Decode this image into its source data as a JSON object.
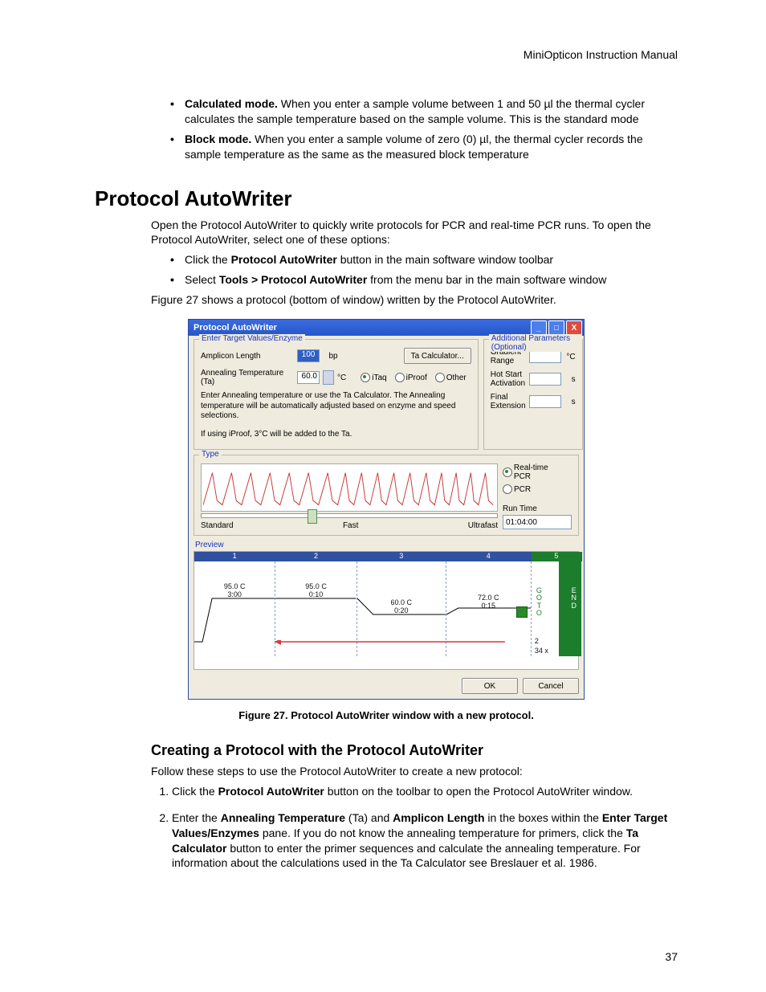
{
  "header": "MiniOpticon Instruction Manual",
  "page_number": "37",
  "bullets_top": [
    {
      "b": "Calculated mode.",
      "t": " When you enter a sample volume between 1 and 50 µl the thermal cycler calculates the sample temperature based on the sample volume. This is the standard mode"
    },
    {
      "b": "Block mode.",
      "t": " When you enter a sample volume of zero (0) µl, the thermal cycler records the sample temperature as the same as the measured block temperature"
    }
  ],
  "h1": "Protocol AutoWriter",
  "p1": "Open the Protocol AutoWriter to quickly write protocols for PCR and real-time PCR runs. To open the Protocol AutoWriter, select one of these options:",
  "bullets_mid": [
    {
      "pre": "Click the ",
      "b": "Protocol AutoWriter",
      "post": " button in the main software window toolbar"
    },
    {
      "pre": "Select ",
      "b": "Tools > Protocol AutoWriter",
      "post": " from the menu bar in the main software window"
    }
  ],
  "p2": "Figure 27 shows a protocol (bottom of window) written by the Protocol AutoWriter.",
  "fig_cap": "Figure 27. Protocol AutoWriter window with a new protocol.",
  "h2": "Creating a Protocol with the Protocol AutoWriter",
  "p3": "Follow these steps to use the Protocol AutoWriter to create a new protocol:",
  "steps": {
    "s1": {
      "pre": "Click the ",
      "b": "Protocol AutoWriter",
      "post": " button on the toolbar to open the Protocol AutoWriter window."
    },
    "s2": {
      "a": "Enter the ",
      "b1": "Annealing Temperature",
      "c": " (Ta) and ",
      "b2": "Amplicon Length",
      "d": " in the boxes within the ",
      "b3": "Enter Target Values/Enzymes",
      "e": " pane. If you do not know the annealing temperature for primers, click the ",
      "b4": "Ta Calculator",
      "f": " button to enter the primer sequences and calculate the annealing temperature. For information about the calculations used in the Ta Calculator see Breslauer et al. 1986."
    }
  },
  "win": {
    "title": "Protocol AutoWriter",
    "legend_left": "Enter Target Values/Enzyme",
    "legend_right": "Additional Parameters (Optional)",
    "amp_label": "Amplicon Length",
    "amp_value": "100",
    "bp": "bp",
    "ta_btn": "Ta Calculator...",
    "anneal_label": "Annealing Temperature (Ta)",
    "anneal_value": "60.0",
    "deg": "°C",
    "enzymes": {
      "itaq": "iTaq",
      "iproof": "iProof",
      "other": "Other"
    },
    "note1": "Enter Annealing temperature or use the Ta Calculator. The Annealing temperature will be automatically adjusted based on enzyme and speed selections.",
    "note2": "If using iProof, 3°C will be added to the Ta.",
    "grad_label": "Gradient Range",
    "hot_label": "Hot Start Activation",
    "final_label": "Final Extension",
    "unit_c": "°C",
    "unit_s": "s",
    "type_legend": "Type",
    "speed": {
      "std": "Standard",
      "fast": "Fast",
      "ultra": "Ultrafast"
    },
    "rt_pcr": "Real-time PCR",
    "pcr": "PCR",
    "run_time_lbl": "Run Time",
    "run_time_val": "01:04:00",
    "preview_lbl": "Preview",
    "ok": "OK",
    "cancel": "Cancel",
    "segs": {
      "heads": [
        "1",
        "2",
        "3",
        "4",
        "5"
      ],
      "head_colors": [
        "#3050a0",
        "#3050a0",
        "#3050a0",
        "#3050a0",
        "#1c7d2c"
      ],
      "widths": [
        21,
        21,
        23,
        22,
        13
      ],
      "s1": {
        "t": "95.0   C",
        "d": "3:00"
      },
      "s2": {
        "t": "95.0   C",
        "d": "0:10"
      },
      "s3": {
        "t": "60.0   C",
        "d": "0:20"
      },
      "s4": {
        "t": "72.0   C",
        "d": "0:15"
      },
      "s5a": "G\nO\nT\nO",
      "s5b": "E\nN\nD",
      "loop_n": "2",
      "loop_x": "34    x"
    },
    "plate_icon_color": "#2a8a2a",
    "wave_color": "#c43a3a",
    "slider_pos_pct": 36
  }
}
